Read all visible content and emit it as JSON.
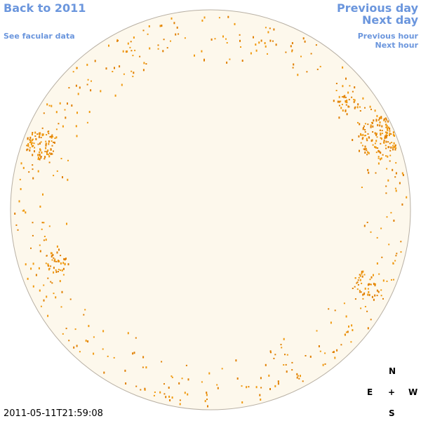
{
  "nav": {
    "back_year": "Back to 2011",
    "facular": "See facular data",
    "prev_day": "Previous day",
    "next_day": "Next day",
    "prev_hour": "Previous hour",
    "next_hour": "Next hour"
  },
  "compass": {
    "north": "N",
    "east": "E",
    "center": "+",
    "west": "W",
    "south": "S"
  },
  "timestamp": "2011-05-11T21:59:08"
}
